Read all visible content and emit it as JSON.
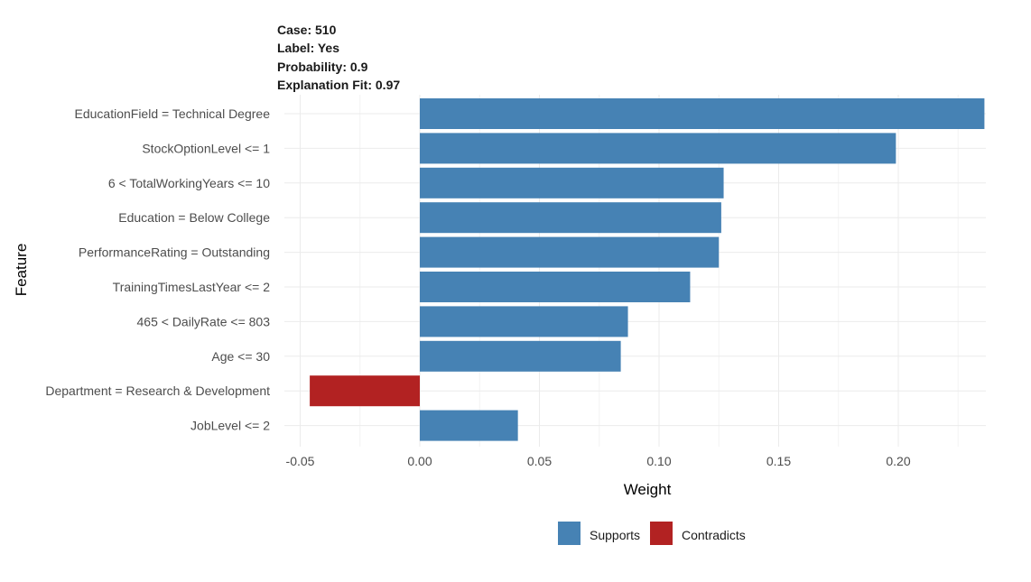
{
  "header": {
    "case": "Case: 510",
    "label": "Label: Yes",
    "probability": "Probability: 0.9",
    "fit": "Explanation Fit: 0.97"
  },
  "chart_data": {
    "type": "bar",
    "orientation": "horizontal",
    "xlabel": "Weight",
    "ylabel": "Feature",
    "xlim": [
      -0.05,
      0.235
    ],
    "xticks": [
      -0.05,
      0.0,
      0.05,
      0.1,
      0.15,
      0.2
    ],
    "xtick_labels": [
      "-0.05",
      "0.00",
      "0.05",
      "0.10",
      "0.15",
      "0.20"
    ],
    "grid": true,
    "legend": {
      "placement": "bottom",
      "entries": [
        {
          "name": "Supports",
          "color": "#4682B4"
        },
        {
          "name": "Contradicts",
          "color": "#B22222"
        }
      ]
    },
    "categories": [
      "EducationField = Technical Degree",
      "StockOptionLevel <= 1",
      "6 < TotalWorkingYears <= 10",
      "Education = Below College",
      "PerformanceRating = Outstanding",
      "TrainingTimesLastYear <= 2",
      "465 < DailyRate <= 803",
      "Age <= 30",
      "Department = Research & Development",
      "JobLevel <= 2"
    ],
    "values": [
      0.236,
      0.199,
      0.127,
      0.126,
      0.125,
      0.113,
      0.087,
      0.084,
      -0.046,
      0.041
    ],
    "groups": [
      "Supports",
      "Supports",
      "Supports",
      "Supports",
      "Supports",
      "Supports",
      "Supports",
      "Supports",
      "Contradicts",
      "Supports"
    ]
  }
}
